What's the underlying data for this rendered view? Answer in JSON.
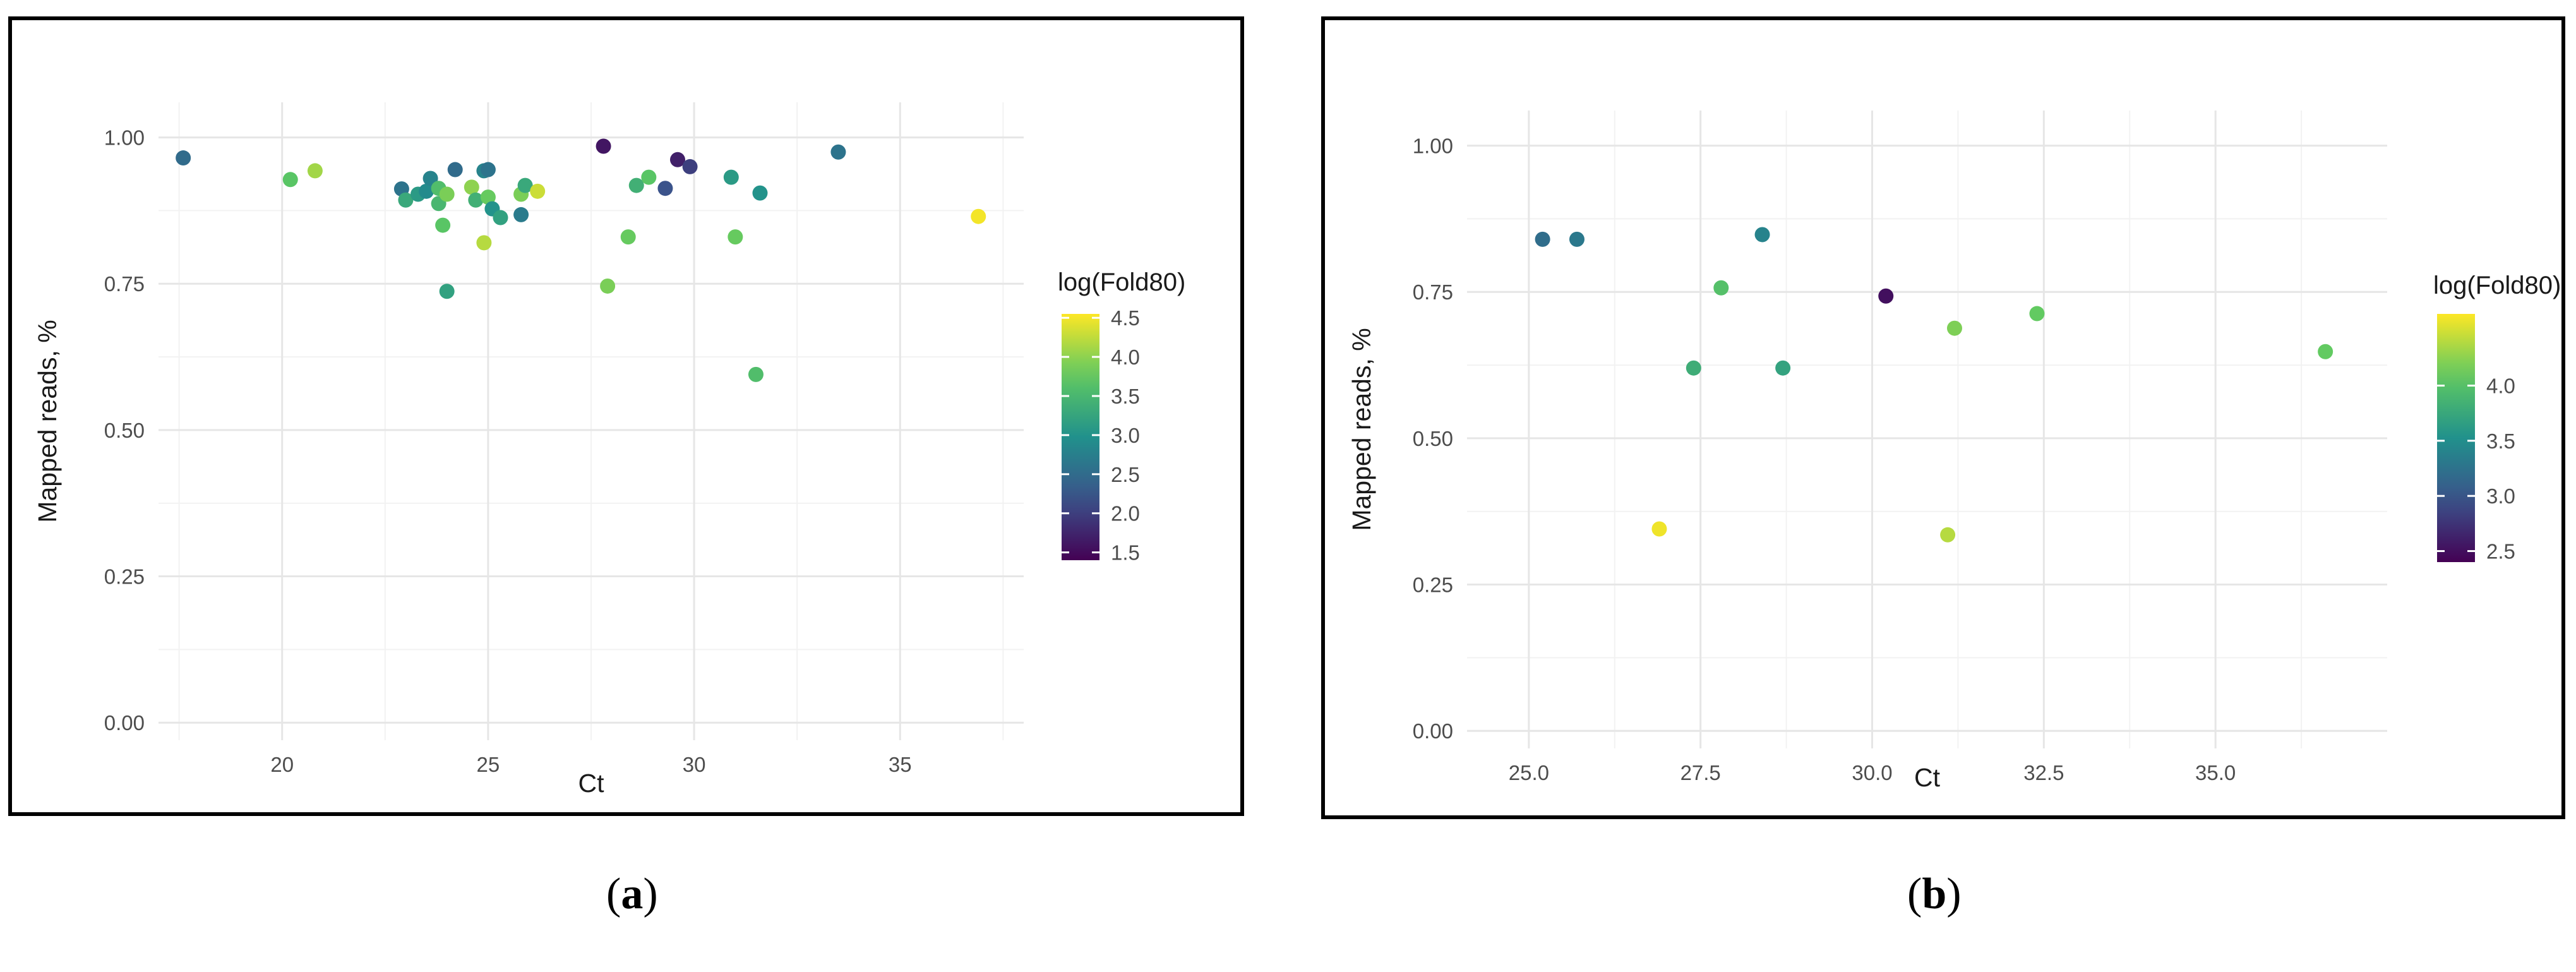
{
  "chart_data": [
    {
      "type": "scatter",
      "panel_label": "a",
      "xlabel": "Ct",
      "ylabel": "Mapped reads, %",
      "xlim": [
        17.0,
        38.0
      ],
      "ylim": [
        -0.03,
        1.06
      ],
      "x_ticks": [
        20,
        25,
        30,
        35
      ],
      "x_tick_labels": [
        "20",
        "25",
        "30",
        "35"
      ],
      "y_ticks": [
        0.0,
        0.25,
        0.5,
        0.75,
        1.0
      ],
      "y_tick_labels": [
        "0.00",
        "0.25",
        "0.50",
        "0.75",
        "1.00"
      ],
      "grid": true,
      "legend": {
        "title": "log(Fold80)",
        "position": "right",
        "range": [
          1.4,
          4.55
        ],
        "ticks": [
          1.5,
          2.0,
          2.5,
          3.0,
          3.5,
          4.0,
          4.5
        ],
        "tick_labels": [
          "1.5",
          "2.0",
          "2.5",
          "3.0",
          "3.5",
          "4.0",
          "4.5"
        ]
      },
      "points": [
        {
          "x": 17.6,
          "y": 0.965,
          "c": 2.5
        },
        {
          "x": 20.2,
          "y": 0.928,
          "c": 3.7
        },
        {
          "x": 20.8,
          "y": 0.943,
          "c": 4.1
        },
        {
          "x": 22.9,
          "y": 0.912,
          "c": 2.6
        },
        {
          "x": 23.0,
          "y": 0.893,
          "c": 3.3
        },
        {
          "x": 23.3,
          "y": 0.903,
          "c": 3.1
        },
        {
          "x": 23.5,
          "y": 0.908,
          "c": 2.9
        },
        {
          "x": 23.6,
          "y": 0.93,
          "c": 2.8
        },
        {
          "x": 23.8,
          "y": 0.913,
          "c": 3.6
        },
        {
          "x": 23.8,
          "y": 0.887,
          "c": 3.5
        },
        {
          "x": 23.9,
          "y": 0.85,
          "c": 3.7
        },
        {
          "x": 24.0,
          "y": 0.903,
          "c": 3.9
        },
        {
          "x": 24.0,
          "y": 0.737,
          "c": 3.2
        },
        {
          "x": 24.2,
          "y": 0.945,
          "c": 2.5
        },
        {
          "x": 24.6,
          "y": 0.915,
          "c": 4.0
        },
        {
          "x": 24.7,
          "y": 0.893,
          "c": 3.4
        },
        {
          "x": 24.9,
          "y": 0.943,
          "c": 2.8
        },
        {
          "x": 24.9,
          "y": 0.82,
          "c": 4.2
        },
        {
          "x": 25.0,
          "y": 0.898,
          "c": 3.8
        },
        {
          "x": 25.0,
          "y": 0.945,
          "c": 2.6
        },
        {
          "x": 25.1,
          "y": 0.878,
          "c": 3.0
        },
        {
          "x": 25.3,
          "y": 0.863,
          "c": 3.2
        },
        {
          "x": 25.8,
          "y": 0.868,
          "c": 2.7
        },
        {
          "x": 25.8,
          "y": 0.903,
          "c": 3.9
        },
        {
          "x": 25.9,
          "y": 0.918,
          "c": 3.3
        },
        {
          "x": 26.2,
          "y": 0.908,
          "c": 4.3
        },
        {
          "x": 27.8,
          "y": 0.985,
          "c": 1.6
        },
        {
          "x": 27.9,
          "y": 0.746,
          "c": 3.9
        },
        {
          "x": 28.4,
          "y": 0.83,
          "c": 3.8
        },
        {
          "x": 28.6,
          "y": 0.918,
          "c": 3.4
        },
        {
          "x": 28.9,
          "y": 0.932,
          "c": 3.7
        },
        {
          "x": 29.3,
          "y": 0.913,
          "c": 2.2
        },
        {
          "x": 29.6,
          "y": 0.962,
          "c": 1.7
        },
        {
          "x": 29.9,
          "y": 0.95,
          "c": 2.0
        },
        {
          "x": 30.9,
          "y": 0.932,
          "c": 3.1
        },
        {
          "x": 31.0,
          "y": 0.83,
          "c": 3.8
        },
        {
          "x": 31.5,
          "y": 0.595,
          "c": 3.6
        },
        {
          "x": 31.6,
          "y": 0.905,
          "c": 3.0
        },
        {
          "x": 33.5,
          "y": 0.975,
          "c": 2.6
        },
        {
          "x": 36.9,
          "y": 0.865,
          "c": 4.5
        }
      ]
    },
    {
      "type": "scatter",
      "panel_label": "b",
      "xlabel": "Ct",
      "ylabel": "Mapped reads, %",
      "xlim": [
        24.1,
        37.5
      ],
      "ylim": [
        -0.03,
        1.06
      ],
      "x_ticks": [
        25.0,
        27.5,
        30.0,
        32.5,
        35.0
      ],
      "x_tick_labels": [
        "25.0",
        "27.5",
        "30.0",
        "32.5",
        "35.0"
      ],
      "y_ticks": [
        0.0,
        0.25,
        0.5,
        0.75,
        1.0
      ],
      "y_tick_labels": [
        "0.00",
        "0.25",
        "0.50",
        "0.75",
        "1.00"
      ],
      "grid": true,
      "legend": {
        "title": "log(Fold80)",
        "position": "right",
        "range": [
          2.4,
          4.65
        ],
        "ticks": [
          2.5,
          3.0,
          3.5,
          4.0
        ],
        "tick_labels": [
          "2.5",
          "3.0",
          "3.5",
          "4.0"
        ]
      },
      "points": [
        {
          "x": 25.2,
          "y": 0.84,
          "c": 3.2
        },
        {
          "x": 25.7,
          "y": 0.84,
          "c": 3.3
        },
        {
          "x": 26.9,
          "y": 0.345,
          "c": 4.6
        },
        {
          "x": 27.4,
          "y": 0.62,
          "c": 3.8
        },
        {
          "x": 27.8,
          "y": 0.757,
          "c": 4.0
        },
        {
          "x": 28.4,
          "y": 0.848,
          "c": 3.4
        },
        {
          "x": 28.7,
          "y": 0.62,
          "c": 3.7
        },
        {
          "x": 30.2,
          "y": 0.743,
          "c": 2.5
        },
        {
          "x": 31.1,
          "y": 0.335,
          "c": 4.4
        },
        {
          "x": 31.2,
          "y": 0.688,
          "c": 4.2
        },
        {
          "x": 32.4,
          "y": 0.713,
          "c": 4.1
        },
        {
          "x": 36.6,
          "y": 0.648,
          "c": 4.1
        }
      ]
    }
  ],
  "captions": [
    {
      "open": "(",
      "label": "a",
      "close": ")"
    },
    {
      "open": "(",
      "label": "b",
      "close": ")"
    }
  ]
}
